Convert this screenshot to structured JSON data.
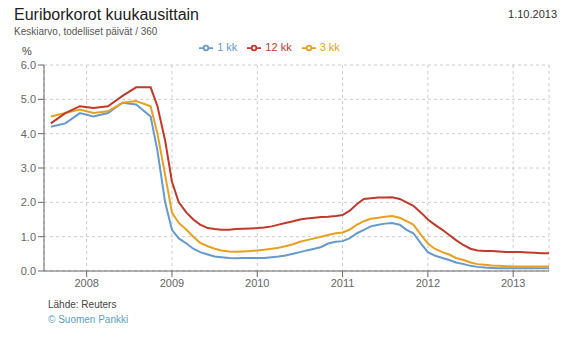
{
  "chart_data": {
    "type": "line",
    "title": "Euriborkorot kuukausittain",
    "subtitle": "Keskiarvo, todelliset päivät / 360",
    "ylabel": "%",
    "annotations": [
      "1.10.2013",
      "Lähde: Reuters",
      "© Suomen Pankki"
    ],
    "grid": true,
    "legend": "top",
    "xlim": [
      2007.5,
      2013.42
    ],
    "xticks": [
      2008,
      2009,
      2010,
      2011,
      2012,
      2013
    ],
    "ylim": [
      0.0,
      6.0
    ],
    "yticks": [
      {
        "value": 0.0,
        "label": "0.0"
      },
      {
        "value": 1.0,
        "label": "1.0"
      },
      {
        "value": 2.0,
        "label": "2.0"
      },
      {
        "value": 3.0,
        "label": "3.0"
      },
      {
        "value": 4.0,
        "label": "4.0"
      },
      {
        "value": 5.0,
        "label": "5.0"
      },
      {
        "value": 6.0,
        "label": "6.0"
      }
    ],
    "x": [
      2007.58,
      2007.75,
      2007.92,
      2008.08,
      2008.25,
      2008.42,
      2008.58,
      2008.75,
      2008.83,
      2008.92,
      2009.0,
      2009.08,
      2009.17,
      2009.25,
      2009.33,
      2009.42,
      2009.5,
      2009.58,
      2009.67,
      2009.75,
      2009.83,
      2009.92,
      2010.0,
      2010.08,
      2010.17,
      2010.25,
      2010.33,
      2010.42,
      2010.5,
      2010.58,
      2010.67,
      2010.75,
      2010.83,
      2010.92,
      2011.0,
      2011.08,
      2011.17,
      2011.25,
      2011.33,
      2011.42,
      2011.5,
      2011.58,
      2011.67,
      2011.75,
      2011.83,
      2011.92,
      2012.0,
      2012.08,
      2012.17,
      2012.25,
      2012.33,
      2012.42,
      2012.5,
      2012.58,
      2012.67,
      2012.75,
      2012.83,
      2012.92,
      2013.0,
      2013.08,
      2013.17,
      2013.25,
      2013.33,
      2013.42
    ],
    "series": [
      {
        "name": "1 kk",
        "color": "#6699cc",
        "values": [
          4.2,
          4.3,
          4.6,
          4.5,
          4.6,
          4.9,
          4.85,
          4.5,
          3.5,
          2.0,
          1.2,
          0.95,
          0.8,
          0.65,
          0.55,
          0.48,
          0.42,
          0.4,
          0.38,
          0.37,
          0.38,
          0.38,
          0.38,
          0.38,
          0.4,
          0.42,
          0.45,
          0.5,
          0.55,
          0.6,
          0.65,
          0.7,
          0.8,
          0.85,
          0.87,
          0.95,
          1.1,
          1.2,
          1.3,
          1.35,
          1.38,
          1.4,
          1.35,
          1.2,
          1.1,
          0.8,
          0.55,
          0.45,
          0.38,
          0.32,
          0.25,
          0.2,
          0.15,
          0.12,
          0.1,
          0.09,
          0.08,
          0.08,
          0.08,
          0.08,
          0.08,
          0.08,
          0.08,
          0.08
        ]
      },
      {
        "name": "3 kk",
        "color": "#e8a020",
        "values": [
          4.5,
          4.6,
          4.7,
          4.6,
          4.65,
          4.9,
          4.95,
          4.8,
          4.0,
          2.8,
          1.7,
          1.4,
          1.2,
          1.0,
          0.82,
          0.72,
          0.65,
          0.6,
          0.57,
          0.56,
          0.57,
          0.58,
          0.6,
          0.62,
          0.65,
          0.68,
          0.72,
          0.78,
          0.85,
          0.9,
          0.95,
          1.0,
          1.05,
          1.1,
          1.12,
          1.2,
          1.35,
          1.45,
          1.52,
          1.55,
          1.58,
          1.6,
          1.55,
          1.45,
          1.35,
          1.05,
          0.8,
          0.65,
          0.55,
          0.48,
          0.38,
          0.32,
          0.25,
          0.2,
          0.18,
          0.16,
          0.15,
          0.14,
          0.13,
          0.13,
          0.13,
          0.13,
          0.13,
          0.13
        ]
      },
      {
        "name": "12 kk",
        "color": "#c0392b",
        "values": [
          4.3,
          4.6,
          4.8,
          4.75,
          4.8,
          5.1,
          5.35,
          5.35,
          4.8,
          3.8,
          2.6,
          2.0,
          1.7,
          1.5,
          1.35,
          1.25,
          1.22,
          1.2,
          1.2,
          1.22,
          1.23,
          1.24,
          1.25,
          1.27,
          1.3,
          1.35,
          1.4,
          1.45,
          1.5,
          1.53,
          1.55,
          1.57,
          1.58,
          1.6,
          1.63,
          1.75,
          1.95,
          2.1,
          2.12,
          2.14,
          2.14,
          2.15,
          2.1,
          2.0,
          1.9,
          1.7,
          1.5,
          1.35,
          1.2,
          1.05,
          0.9,
          0.75,
          0.65,
          0.6,
          0.58,
          0.58,
          0.57,
          0.55,
          0.55,
          0.55,
          0.54,
          0.53,
          0.52,
          0.52
        ]
      }
    ]
  }
}
